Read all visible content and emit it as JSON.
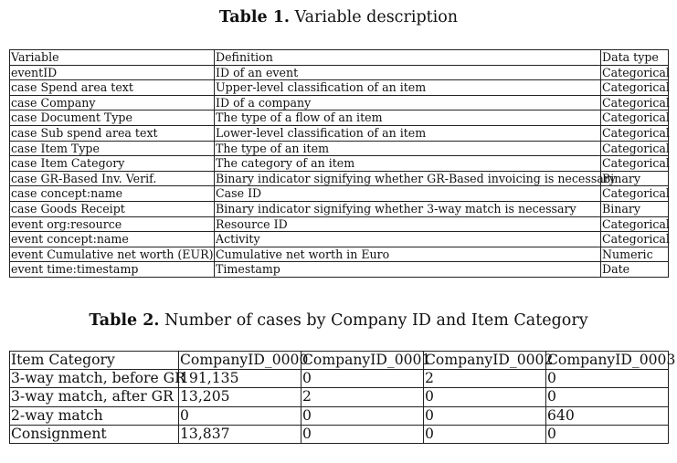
{
  "table1": {
    "caption_label": "Table 1.",
    "caption_text": "Variable description",
    "headers": [
      "Variable",
      "Definition",
      "Data type"
    ],
    "rows": [
      [
        "eventID",
        "ID of an event",
        "Categorical"
      ],
      [
        "case Spend area text",
        "Upper-level classification of an item",
        "Categorical"
      ],
      [
        "case Company",
        "ID of a company",
        "Categorical"
      ],
      [
        "case Document Type",
        "The type of a flow of an item",
        "Categorical"
      ],
      [
        "case Sub spend area text",
        "Lower-level classification of an item",
        "Categorical"
      ],
      [
        "case Item Type",
        "The type of an item",
        "Categorical"
      ],
      [
        "case Item Category",
        "The category of an item",
        "Categorical"
      ],
      [
        "case GR-Based Inv. Verif.",
        "Binary indicator signifying whether GR-Based invoicing is necessary",
        "Binary"
      ],
      [
        "case concept:name",
        "Case ID",
        "Categorical"
      ],
      [
        "case Goods Receipt",
        "Binary indicator signifying whether 3-way match is necessary",
        "Binary"
      ],
      [
        "event org:resource",
        "Resource ID",
        "Categorical"
      ],
      [
        "event concept:name",
        "Activity",
        "Categorical"
      ],
      [
        "event Cumulative net worth (EUR)",
        "Cumulative net worth in Euro",
        "Numeric"
      ],
      [
        "event time:timestamp",
        "Timestamp",
        "Date"
      ]
    ]
  },
  "table2": {
    "caption_label": "Table 2.",
    "caption_text": "Number of cases by Company ID and Item Category",
    "headers": [
      "Item Category",
      "CompanyID_0000",
      "CompanyID_0001",
      "CompanyID_0002",
      "CompanyID_0003"
    ],
    "rows": [
      [
        "3-way match, before GR",
        "191,135",
        "0",
        "2",
        "0"
      ],
      [
        "3-way match, after GR",
        "13,205",
        "2",
        "0",
        "0"
      ],
      [
        "2-way match",
        "0",
        "0",
        "0",
        "640"
      ],
      [
        "Consignment",
        "13,837",
        "0",
        "0",
        "0"
      ]
    ]
  }
}
